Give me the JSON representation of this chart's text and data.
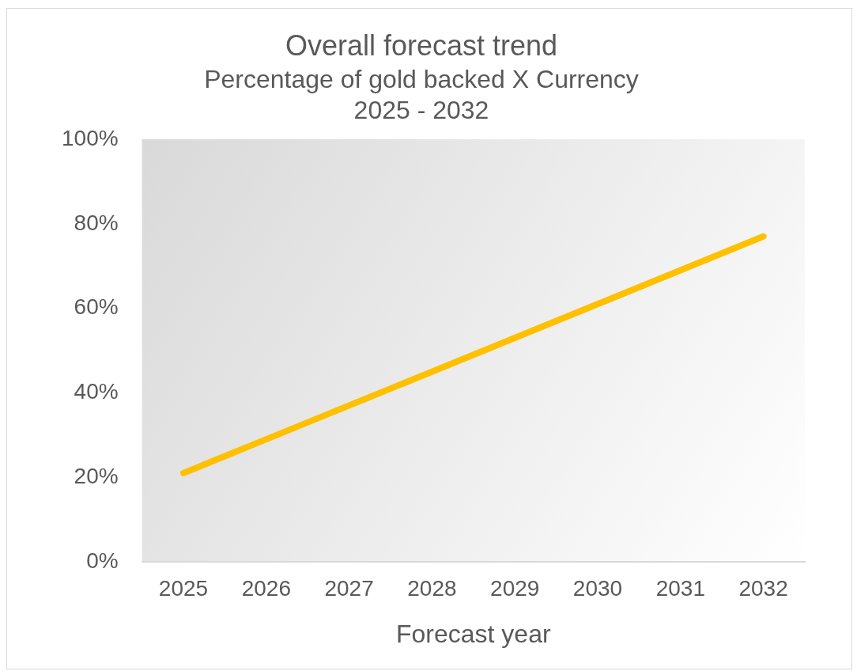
{
  "chart_data": {
    "type": "line",
    "title": "Overall forecast trend",
    "subtitle": [
      "Percentage of gold backed X Currency",
      "2025 - 2032"
    ],
    "xlabel": "Forecast year",
    "categories": [
      "2025",
      "2026",
      "2027",
      "2028",
      "2029",
      "2030",
      "2031",
      "2032"
    ],
    "series": [
      {
        "color": "#ffc000",
        "values": [
          21,
          29,
          37,
          45,
          53,
          61,
          69,
          77
        ]
      }
    ],
    "ylim": [
      0,
      100
    ],
    "yticks": [
      {
        "value": 0,
        "label": "0%"
      },
      {
        "value": 20,
        "label": "20%"
      },
      {
        "value": 40,
        "label": "40%"
      },
      {
        "value": 60,
        "label": "60%"
      },
      {
        "value": 80,
        "label": "80%"
      },
      {
        "value": 100,
        "label": "100%"
      }
    ],
    "grid": false,
    "legend": false,
    "marker": "none",
    "line_style": "solid"
  }
}
